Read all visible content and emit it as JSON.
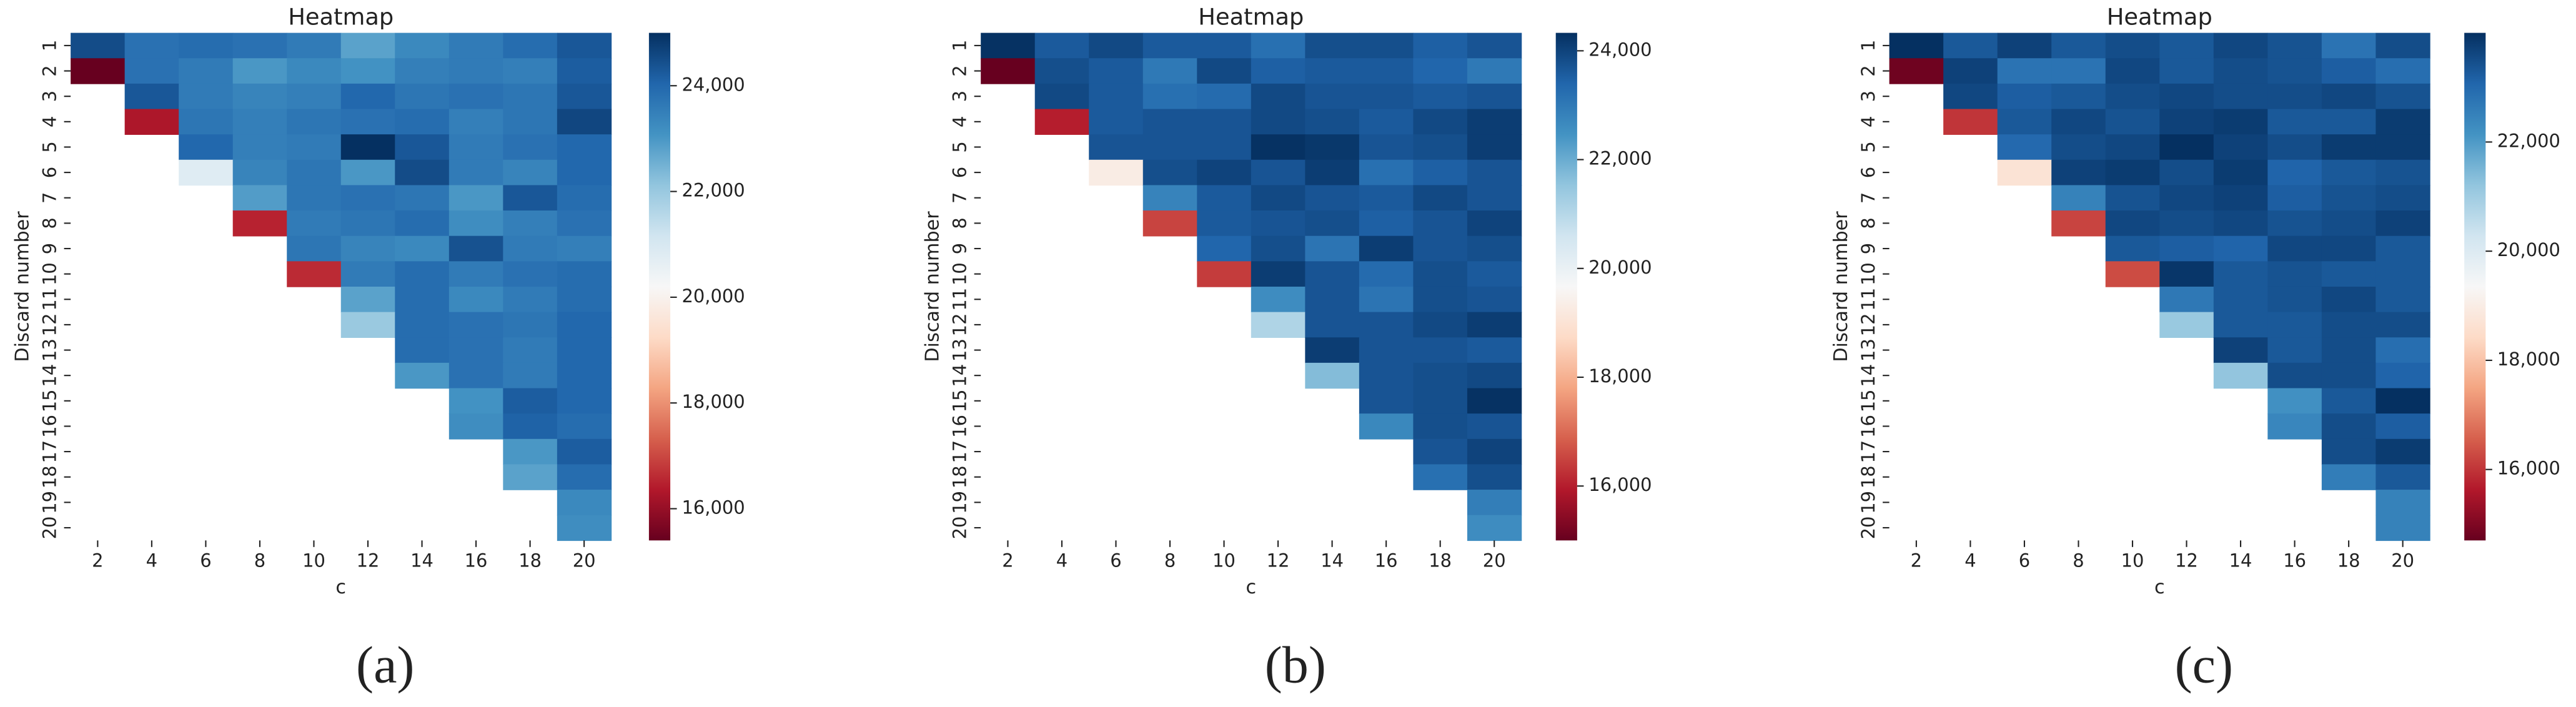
{
  "chart_data": [
    {
      "type": "heatmap",
      "title": "Heatmap",
      "xlabel": "c",
      "ylabel": "Discard number",
      "caption": "(a)",
      "colormap": "RdBu_r",
      "x": [
        2,
        4,
        6,
        8,
        10,
        12,
        14,
        16,
        18,
        20
      ],
      "y": [
        1,
        2,
        3,
        4,
        5,
        6,
        7,
        8,
        9,
        10,
        11,
        12,
        13,
        14,
        15,
        16,
        17,
        18,
        19,
        20
      ],
      "clim": [
        15400,
        25000
      ],
      "cticks": [
        {
          "value": 16000,
          "label": "16,000"
        },
        {
          "value": 18000,
          "label": "18,000"
        },
        {
          "value": 20000,
          "label": "20,000"
        },
        {
          "value": 22000,
          "label": "22,000"
        },
        {
          "value": 24000,
          "label": "24,000"
        }
      ],
      "values": [
        [
          24500,
          23800,
          23900,
          23800,
          23600,
          22800,
          23300,
          23600,
          23900,
          24300
        ],
        [
          15400,
          23800,
          23600,
          23000,
          23300,
          23100,
          23500,
          23600,
          23500,
          24200
        ],
        [
          null,
          24300,
          23600,
          23400,
          23500,
          24000,
          23700,
          23800,
          23700,
          24300
        ],
        [
          null,
          16300,
          23700,
          23500,
          23700,
          23800,
          23900,
          23500,
          23700,
          24600
        ],
        [
          null,
          null,
          24000,
          23500,
          23600,
          25000,
          24300,
          23600,
          23800,
          24000
        ],
        [
          null,
          null,
          20800,
          23400,
          23700,
          23000,
          24500,
          23600,
          23400,
          24000
        ],
        [
          null,
          null,
          null,
          22900,
          23700,
          23800,
          23700,
          23000,
          24300,
          23900
        ],
        [
          null,
          null,
          null,
          16500,
          23600,
          23700,
          23900,
          23200,
          23500,
          23800
        ],
        [
          null,
          null,
          null,
          null,
          23700,
          23400,
          23300,
          24400,
          23600,
          23500
        ],
        [
          null,
          null,
          null,
          null,
          16600,
          23600,
          23900,
          23600,
          23800,
          23900
        ],
        [
          null,
          null,
          null,
          null,
          null,
          22800,
          23900,
          23300,
          23600,
          23900
        ],
        [
          null,
          null,
          null,
          null,
          null,
          22000,
          23900,
          23800,
          23700,
          24000
        ],
        [
          null,
          null,
          null,
          null,
          null,
          null,
          23900,
          23800,
          23600,
          24000
        ],
        [
          null,
          null,
          null,
          null,
          null,
          null,
          23000,
          23800,
          23600,
          24000
        ],
        [
          null,
          null,
          null,
          null,
          null,
          null,
          null,
          23100,
          24200,
          24000
        ],
        [
          null,
          null,
          null,
          null,
          null,
          null,
          null,
          23200,
          24100,
          23900
        ],
        [
          null,
          null,
          null,
          null,
          null,
          null,
          null,
          null,
          23000,
          24200
        ],
        [
          null,
          null,
          null,
          null,
          null,
          null,
          null,
          null,
          22800,
          23900
        ],
        [
          null,
          null,
          null,
          null,
          null,
          null,
          null,
          null,
          null,
          23300
        ],
        [
          null,
          null,
          null,
          null,
          null,
          null,
          null,
          null,
          null,
          23200
        ]
      ]
    },
    {
      "type": "heatmap",
      "title": "Heatmap",
      "xlabel": "c",
      "ylabel": "Discard number",
      "caption": "(b)",
      "colormap": "RdBu_r",
      "x": [
        2,
        4,
        6,
        8,
        10,
        12,
        14,
        16,
        18,
        20
      ],
      "y": [
        1,
        2,
        3,
        4,
        5,
        6,
        7,
        8,
        9,
        10,
        11,
        12,
        13,
        14,
        15,
        16,
        17,
        18,
        19,
        20
      ],
      "clim": [
        15000,
        24330
      ],
      "cticks": [
        {
          "value": 16000,
          "label": "16,000"
        },
        {
          "value": 18000,
          "label": "18,000"
        },
        {
          "value": 20000,
          "label": "20,000"
        },
        {
          "value": 22000,
          "label": "22,000"
        },
        {
          "value": 24000,
          "label": "24,000"
        }
      ],
      "values": [
        [
          24300,
          23600,
          23900,
          23600,
          23600,
          23200,
          23800,
          23800,
          23500,
          23700
        ],
        [
          15000,
          23800,
          23600,
          23000,
          23900,
          23500,
          23600,
          23600,
          23400,
          23000
        ],
        [
          null,
          23900,
          23600,
          23200,
          23300,
          23900,
          23700,
          23700,
          23600,
          23700
        ],
        [
          null,
          16000,
          23600,
          23700,
          23700,
          23900,
          23800,
          23600,
          23900,
          24100
        ],
        [
          null,
          null,
          23700,
          23700,
          23700,
          24300,
          24200,
          23700,
          23800,
          24100
        ],
        [
          null,
          null,
          19300,
          23800,
          24000,
          23700,
          24100,
          23200,
          23500,
          23700
        ],
        [
          null,
          null,
          null,
          22800,
          23600,
          23900,
          23700,
          23600,
          23900,
          23700
        ],
        [
          null,
          null,
          null,
          16500,
          23600,
          23700,
          23800,
          23500,
          23700,
          24000
        ],
        [
          null,
          null,
          null,
          null,
          23400,
          23800,
          23100,
          24100,
          23700,
          23800
        ],
        [
          null,
          null,
          null,
          null,
          16400,
          24100,
          23700,
          23300,
          23800,
          23600
        ],
        [
          null,
          null,
          null,
          null,
          null,
          22600,
          23700,
          23100,
          23800,
          23700
        ],
        [
          null,
          null,
          null,
          null,
          null,
          21100,
          23700,
          23700,
          23900,
          24100
        ],
        [
          null,
          null,
          null,
          null,
          null,
          null,
          24100,
          23700,
          23700,
          23600
        ],
        [
          null,
          null,
          null,
          null,
          null,
          null,
          21700,
          23700,
          23800,
          23900
        ],
        [
          null,
          null,
          null,
          null,
          null,
          null,
          null,
          23700,
          23800,
          24300
        ],
        [
          null,
          null,
          null,
          null,
          null,
          null,
          null,
          22700,
          23800,
          23700
        ],
        [
          null,
          null,
          null,
          null,
          null,
          null,
          null,
          null,
          23700,
          24000
        ],
        [
          null,
          null,
          null,
          null,
          null,
          null,
          null,
          null,
          23200,
          23800
        ],
        [
          null,
          null,
          null,
          null,
          null,
          null,
          null,
          null,
          null,
          22900
        ],
        [
          null,
          null,
          null,
          null,
          null,
          null,
          null,
          null,
          null,
          22600
        ]
      ]
    },
    {
      "type": "heatmap",
      "title": "Heatmap",
      "xlabel": "c",
      "ylabel": "Discard number",
      "caption": "(c)",
      "colormap": "RdBu_r",
      "x": [
        2,
        4,
        6,
        8,
        10,
        12,
        14,
        16,
        18,
        20
      ],
      "y": [
        1,
        2,
        3,
        4,
        5,
        6,
        7,
        8,
        9,
        10,
        11,
        12,
        13,
        14,
        15,
        16,
        17,
        18,
        19,
        20
      ],
      "clim": [
        14700,
        24000
      ],
      "cticks": [
        {
          "value": 16000,
          "label": "16,000"
        },
        {
          "value": 18000,
          "label": "18,000"
        },
        {
          "value": 20000,
          "label": "20,000"
        },
        {
          "value": 22000,
          "label": "22,000"
        }
      ],
      "values": [
        [
          24000,
          23300,
          23700,
          23300,
          23500,
          23300,
          23600,
          23400,
          22800,
          23500
        ],
        [
          14800,
          23700,
          22800,
          22800,
          23600,
          23300,
          23500,
          23400,
          23200,
          22900
        ],
        [
          null,
          23600,
          23200,
          23300,
          23500,
          23600,
          23500,
          23500,
          23600,
          23400
        ],
        [
          null,
          16000,
          23300,
          23600,
          23400,
          23700,
          23800,
          23300,
          23300,
          23800
        ],
        [
          null,
          null,
          23000,
          23500,
          23600,
          24000,
          23700,
          23500,
          23800,
          23800
        ],
        [
          null,
          null,
          18700,
          23700,
          23800,
          23500,
          23800,
          23100,
          23300,
          23400
        ],
        [
          null,
          null,
          null,
          22500,
          23400,
          23600,
          23700,
          23200,
          23400,
          23500
        ],
        [
          null,
          null,
          null,
          16200,
          23600,
          23500,
          23600,
          23400,
          23500,
          23700
        ],
        [
          null,
          null,
          null,
          null,
          23300,
          23200,
          23100,
          23600,
          23600,
          23300
        ],
        [
          null,
          null,
          null,
          null,
          16300,
          23900,
          23300,
          23400,
          23300,
          23300
        ],
        [
          null,
          null,
          null,
          null,
          null,
          22700,
          23300,
          23400,
          23600,
          23300
        ],
        [
          null,
          null,
          null,
          null,
          null,
          21100,
          23300,
          23300,
          23500,
          23500
        ],
        [
          null,
          null,
          null,
          null,
          null,
          null,
          23700,
          23300,
          23500,
          22900
        ],
        [
          null,
          null,
          null,
          null,
          null,
          null,
          21200,
          23500,
          23500,
          23100
        ],
        [
          null,
          null,
          null,
          null,
          null,
          null,
          null,
          22200,
          23300,
          24000
        ],
        [
          null,
          null,
          null,
          null,
          null,
          null,
          null,
          22400,
          23500,
          23200
        ],
        [
          null,
          null,
          null,
          null,
          null,
          null,
          null,
          null,
          23500,
          23800
        ],
        [
          null,
          null,
          null,
          null,
          null,
          null,
          null,
          null,
          22600,
          23300
        ],
        [
          null,
          null,
          null,
          null,
          null,
          null,
          null,
          null,
          null,
          22500
        ],
        [
          null,
          null,
          null,
          null,
          null,
          null,
          null,
          null,
          null,
          22500
        ]
      ]
    }
  ]
}
